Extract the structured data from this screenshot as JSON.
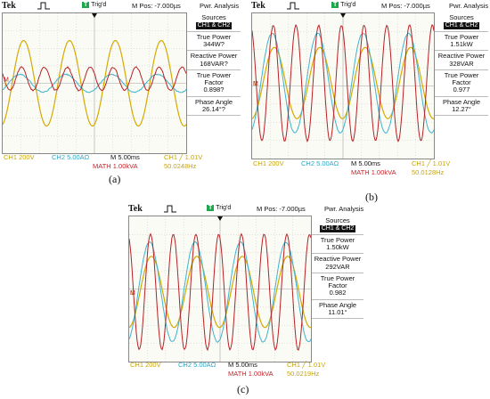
{
  "colors": {
    "ch1": "#d4aa00",
    "ch2": "#3fb3cf",
    "math": "#b82025",
    "grid": "#c8c8c8",
    "background": "#fbfbf6"
  },
  "panels": [
    {
      "id": "a",
      "caption": "(a)",
      "brand": "Tek",
      "trig": "Trig'd",
      "mpos": "M Pos: -7.000µs",
      "mode": "Pwr. Analysis",
      "side": {
        "sources_label": "Sources",
        "sources_value": "CH1 & CH2",
        "true_power_label": "True Power",
        "true_power_value": "344W?",
        "reactive_label": "Reactive Power",
        "reactive_value": "168VAR?",
        "pf_label": "True Power Factor",
        "pf_value": "0.898?",
        "phase_label": "Phase Angle",
        "phase_value": "26.14°?"
      },
      "bottom": {
        "ch1": "CH1  200V",
        "ch2": "CH2  5.00AΩ",
        "m": "M 5.00ms",
        "trig": "CH1 ╱ 1.01V",
        "math": "MATH 1.00kVA",
        "freq": "50.0248Hz"
      }
    },
    {
      "id": "b",
      "caption": "(b)",
      "brand": "Tek",
      "trig": "Trig'd",
      "mpos": "M Pos: -7.000µs",
      "mode": "Pwr. Analysis",
      "side": {
        "sources_label": "Sources",
        "sources_value": "CH1 & CH2",
        "true_power_label": "True Power",
        "true_power_value": "1.51kW",
        "reactive_label": "Reactive Power",
        "reactive_value": "328VAR",
        "pf_label": "True Power Factor",
        "pf_value": "0.977",
        "phase_label": "Phase Angle",
        "phase_value": "12.27°"
      },
      "bottom": {
        "ch1": "CH1  200V",
        "ch2": "CH2  5.00AΩ",
        "m": "M 5.00ms",
        "trig": "CH1 ╱ 1.01V",
        "math": "MATH 1.00kVA",
        "freq": "50.0128Hz"
      }
    },
    {
      "id": "c",
      "caption": "(c)",
      "brand": "Tek",
      "trig": "Trig'd",
      "mpos": "M Pos: -7.000µs",
      "mode": "Pwr. Analysis",
      "side": {
        "sources_label": "Sources",
        "sources_value": "CH1 & CH2",
        "true_power_label": "True Power",
        "true_power_value": "1.50kW",
        "reactive_label": "Reactive Power",
        "reactive_value": "292VAR",
        "pf_label": "True Power Factor",
        "pf_value": "0.982",
        "phase_label": "Phase Angle",
        "phase_value": "11.01°"
      },
      "bottom": {
        "ch1": "CH1  200V",
        "ch2": "CH2  5.00AΩ",
        "m": "M 5.00ms",
        "trig": "CH1 ╱ 1.01V",
        "math": "MATH 1.00kVA",
        "freq": "50.0219Hz"
      }
    }
  ]
}
